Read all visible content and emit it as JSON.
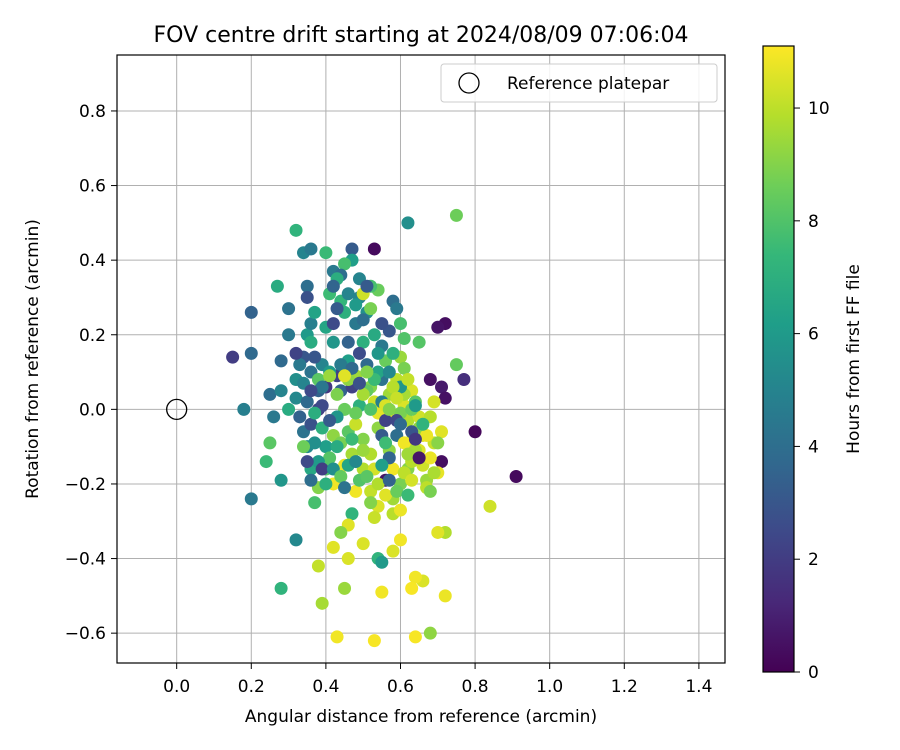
{
  "chart_data": {
    "type": "scatter",
    "title": "FOV centre drift starting at 2024/08/09 07:06:04",
    "xlabel": "Angular distance from reference (arcmin)",
    "ylabel": "Rotation from reference (arcmin)",
    "xlim": [
      -0.16,
      1.47
    ],
    "ylim": [
      -0.68,
      0.95
    ],
    "xticks": [
      0.0,
      0.2,
      0.4,
      0.6,
      0.8,
      1.0,
      1.2,
      1.4
    ],
    "xtick_labels": [
      "0.0",
      "0.2",
      "0.4",
      "0.6",
      "0.8",
      "1.0",
      "1.2",
      "1.4"
    ],
    "yticks": [
      -0.6,
      -0.4,
      -0.2,
      0.0,
      0.2,
      0.4,
      0.6,
      0.8
    ],
    "ytick_labels": [
      "−0.6",
      "−0.4",
      "−0.2",
      "0.0",
      "0.2",
      "0.4",
      "0.6",
      "0.8"
    ],
    "grid": true,
    "legend": {
      "position": "upper-right",
      "entries": [
        "Reference platepar"
      ]
    },
    "reference_point": {
      "x": 0.0,
      "y": 0.0,
      "label": "Reference platepar"
    },
    "colorbar": {
      "label": "Hours from first FF file",
      "range": [
        0,
        11.1
      ],
      "ticks": [
        0,
        2,
        4,
        6,
        8,
        10
      ],
      "tick_labels": [
        "0",
        "2",
        "4",
        "6",
        "8",
        "10"
      ],
      "colormap": "viridis",
      "colors": [
        "#440154",
        "#482878",
        "#3e4989",
        "#31688e",
        "#26828e",
        "#1f9e89",
        "#35b779",
        "#6ece58",
        "#b5de2b",
        "#fde725"
      ]
    },
    "points": [
      [
        0.53,
        0.43,
        0.3
      ],
      [
        0.62,
        0.5,
        5.5
      ],
      [
        0.75,
        0.52,
        8.6
      ],
      [
        0.91,
        -0.18,
        0.3
      ],
      [
        0.8,
        -0.06,
        0.2
      ],
      [
        0.72,
        0.23,
        0.4
      ],
      [
        0.7,
        0.22,
        0.6
      ],
      [
        0.68,
        0.08,
        0.5
      ],
      [
        0.71,
        0.06,
        0.8
      ],
      [
        0.72,
        0.03,
        0.5
      ],
      [
        0.77,
        0.08,
        1.5
      ],
      [
        0.71,
        -0.14,
        0.4
      ],
      [
        0.75,
        0.12,
        8.4
      ],
      [
        0.84,
        -0.26,
        10.3
      ],
      [
        0.72,
        -0.33,
        9.8
      ],
      [
        0.7,
        -0.33,
        10.6
      ],
      [
        0.72,
        -0.5,
        10.8
      ],
      [
        0.68,
        -0.6,
        9.2
      ],
      [
        0.66,
        -0.46,
        10.5
      ],
      [
        0.64,
        -0.45,
        10.9
      ],
      [
        0.64,
        -0.61,
        11.0
      ],
      [
        0.63,
        -0.48,
        11.0
      ],
      [
        0.55,
        -0.49,
        10.9
      ],
      [
        0.53,
        -0.62,
        11.0
      ],
      [
        0.43,
        -0.61,
        10.9
      ],
      [
        0.39,
        -0.52,
        9.6
      ],
      [
        0.38,
        -0.42,
        10.1
      ],
      [
        0.45,
        -0.48,
        9.4
      ],
      [
        0.42,
        -0.37,
        10.6
      ],
      [
        0.46,
        -0.4,
        10.5
      ],
      [
        0.5,
        -0.36,
        10.5
      ],
      [
        0.54,
        -0.4,
        7.2
      ],
      [
        0.55,
        -0.41,
        6.0
      ],
      [
        0.58,
        -0.38,
        10.5
      ],
      [
        0.6,
        -0.35,
        10.9
      ],
      [
        0.32,
        -0.35,
        5.2
      ],
      [
        0.28,
        -0.48,
        7.2
      ],
      [
        0.2,
        -0.24,
        4.5
      ],
      [
        0.18,
        0.0,
        4.8
      ],
      [
        0.15,
        0.14,
        2.0
      ],
      [
        0.2,
        0.15,
        3.8
      ],
      [
        0.2,
        0.26,
        3.5
      ],
      [
        0.25,
        0.04,
        4.0
      ],
      [
        0.24,
        -0.14,
        7.5
      ],
      [
        0.25,
        -0.09,
        8.2
      ],
      [
        0.26,
        -0.02,
        4.5
      ],
      [
        0.27,
        0.33,
        6.8
      ],
      [
        0.28,
        -0.19,
        5.8
      ],
      [
        0.3,
        0.27,
        4.2
      ],
      [
        0.32,
        0.48,
        7.2
      ],
      [
        0.34,
        0.42,
        5.0
      ],
      [
        0.36,
        0.43,
        4.5
      ],
      [
        0.35,
        0.33,
        4.0
      ],
      [
        0.35,
        0.3,
        2.8
      ],
      [
        0.4,
        0.42,
        7.5
      ],
      [
        0.47,
        0.43,
        3.2
      ],
      [
        0.47,
        0.4,
        6.2
      ],
      [
        0.45,
        0.39,
        7.8
      ],
      [
        0.42,
        0.37,
        4.5
      ],
      [
        0.41,
        0.31,
        7.6
      ],
      [
        0.3,
        0.2,
        4.5
      ],
      [
        0.28,
        0.13,
        3.8
      ],
      [
        0.28,
        0.05,
        5.0
      ],
      [
        0.3,
        0.0,
        6.8
      ],
      [
        0.32,
        0.08,
        5.5
      ],
      [
        0.34,
        0.14,
        3.0
      ],
      [
        0.35,
        0.2,
        6.0
      ],
      [
        0.36,
        0.1,
        4.2
      ],
      [
        0.38,
        0.05,
        3.5
      ],
      [
        0.39,
        0.12,
        5.0
      ],
      [
        0.4,
        0.22,
        6.5
      ],
      [
        0.42,
        0.18,
        5.8
      ],
      [
        0.43,
        0.09,
        2.2
      ],
      [
        0.44,
        0.05,
        3.5
      ],
      [
        0.45,
        0.0,
        8.5
      ],
      [
        0.46,
        0.13,
        6.2
      ],
      [
        0.48,
        0.23,
        4.5
      ],
      [
        0.49,
        0.3,
        5.0
      ],
      [
        0.5,
        0.18,
        7.0
      ],
      [
        0.51,
        0.12,
        3.8
      ],
      [
        0.52,
        0.06,
        9.0
      ],
      [
        0.53,
        0.02,
        10.3
      ],
      [
        0.54,
        -0.05,
        9.2
      ],
      [
        0.55,
        0.08,
        4.2
      ],
      [
        0.56,
        0.13,
        8.5
      ],
      [
        0.57,
        0.04,
        9.5
      ],
      [
        0.58,
        -0.02,
        10.8
      ],
      [
        0.59,
        0.08,
        10.0
      ],
      [
        0.6,
        0.14,
        9.4
      ],
      [
        0.61,
        0.01,
        10.5
      ],
      [
        0.62,
        -0.03,
        9.8
      ],
      [
        0.63,
        0.05,
        10.5
      ],
      [
        0.64,
        -0.06,
        10.9
      ],
      [
        0.65,
        -0.11,
        10.5
      ],
      [
        0.66,
        -0.15,
        10.3
      ],
      [
        0.67,
        -0.19,
        9.4
      ],
      [
        0.68,
        -0.13,
        10.8
      ],
      [
        0.69,
        -0.09,
        10.2
      ],
      [
        0.71,
        -0.06,
        10.6
      ],
      [
        0.7,
        -0.17,
        10.7
      ],
      [
        0.62,
        -0.16,
        9.0
      ],
      [
        0.6,
        -0.2,
        8.8
      ],
      [
        0.58,
        -0.24,
        9.5
      ],
      [
        0.56,
        -0.19,
        0.6
      ],
      [
        0.54,
        -0.26,
        10.5
      ],
      [
        0.52,
        -0.22,
        10.1
      ],
      [
        0.5,
        -0.16,
        9.8
      ],
      [
        0.48,
        -0.22,
        10.9
      ],
      [
        0.47,
        -0.28,
        7.2
      ],
      [
        0.46,
        -0.31,
        10.6
      ],
      [
        0.44,
        -0.33,
        9.0
      ],
      [
        0.42,
        -0.2,
        10.9
      ],
      [
        0.4,
        -0.16,
        8.0
      ],
      [
        0.38,
        -0.21,
        9.0
      ],
      [
        0.37,
        -0.25,
        7.8
      ],
      [
        0.36,
        -0.16,
        6.6
      ],
      [
        0.35,
        -0.1,
        5.2
      ],
      [
        0.34,
        -0.06,
        4.2
      ],
      [
        0.33,
        -0.02,
        3.5
      ],
      [
        0.32,
        0.03,
        5.2
      ],
      [
        0.36,
        -0.04,
        2.8
      ],
      [
        0.38,
        0.0,
        2.0
      ],
      [
        0.39,
        -0.05,
        7.0
      ],
      [
        0.4,
        -0.1,
        6.2
      ],
      [
        0.41,
        -0.13,
        8.1
      ],
      [
        0.42,
        -0.07,
        9.2
      ],
      [
        0.43,
        -0.02,
        5.8
      ],
      [
        0.44,
        -0.09,
        8.8
      ],
      [
        0.45,
        -0.15,
        10.8
      ],
      [
        0.46,
        -0.06,
        8.2
      ],
      [
        0.47,
        -0.12,
        9.6
      ],
      [
        0.48,
        -0.04,
        10.2
      ],
      [
        0.49,
        0.01,
        7.0
      ],
      [
        0.5,
        -0.08,
        9.0
      ],
      [
        0.51,
        0.05,
        8.4
      ],
      [
        0.52,
        -0.12,
        9.8
      ],
      [
        0.53,
        -0.16,
        10.4
      ],
      [
        0.54,
        -0.01,
        10.7
      ],
      [
        0.55,
        -0.07,
        3.2
      ],
      [
        0.56,
        -0.03,
        2.2
      ],
      [
        0.57,
        -0.11,
        9.2
      ],
      [
        0.58,
        -0.16,
        10.9
      ],
      [
        0.59,
        -0.07,
        4.0
      ],
      [
        0.6,
        -0.01,
        8.8
      ],
      [
        0.61,
        0.04,
        9.6
      ],
      [
        0.62,
        -0.09,
        10.0
      ],
      [
        0.63,
        -0.14,
        9.9
      ],
      [
        0.64,
        0.02,
        8.2
      ],
      [
        0.65,
        -0.02,
        10.3
      ],
      [
        0.66,
        -0.07,
        10.6
      ],
      [
        0.57,
        0.21,
        3.0
      ],
      [
        0.58,
        0.29,
        4.0
      ],
      [
        0.59,
        0.27,
        4.5
      ],
      [
        0.6,
        0.23,
        7.8
      ],
      [
        0.61,
        0.19,
        8.0
      ],
      [
        0.55,
        0.23,
        2.8
      ],
      [
        0.54,
        0.32,
        8.5
      ],
      [
        0.52,
        0.33,
        7.8
      ],
      [
        0.51,
        0.26,
        5.5
      ],
      [
        0.5,
        0.24,
        4.0
      ],
      [
        0.49,
        0.15,
        2.6
      ],
      [
        0.48,
        0.09,
        9.5
      ],
      [
        0.47,
        0.06,
        2.2
      ],
      [
        0.46,
        0.18,
        3.5
      ],
      [
        0.45,
        0.26,
        7.0
      ],
      [
        0.44,
        0.29,
        7.3
      ],
      [
        0.43,
        0.27,
        3.2
      ],
      [
        0.42,
        0.23,
        2.5
      ],
      [
        0.41,
        0.1,
        6.0
      ],
      [
        0.4,
        0.06,
        1.8
      ],
      [
        0.39,
        0.01,
        2.5
      ],
      [
        0.38,
        0.08,
        8.2
      ],
      [
        0.37,
        0.14,
        3.0
      ],
      [
        0.36,
        0.18,
        6.8
      ],
      [
        0.35,
        0.02,
        3.8
      ],
      [
        0.34,
        0.07,
        5.0
      ],
      [
        0.33,
        0.12,
        4.5
      ],
      [
        0.32,
        0.15,
        2.2
      ],
      [
        0.36,
        0.23,
        4.8
      ],
      [
        0.37,
        0.26,
        6.4
      ],
      [
        0.44,
        0.12,
        4.6
      ],
      [
        0.46,
        0.08,
        9.2
      ],
      [
        0.48,
        -0.01,
        8.5
      ],
      [
        0.5,
        0.04,
        9.6
      ],
      [
        0.52,
        0.0,
        8.0
      ],
      [
        0.54,
        0.1,
        6.5
      ],
      [
        0.56,
        -0.09,
        7.6
      ],
      [
        0.57,
        -0.13,
        3.6
      ],
      [
        0.59,
        -0.03,
        2.4
      ],
      [
        0.6,
        0.06,
        5.8
      ],
      [
        0.61,
        0.11,
        8.8
      ],
      [
        0.62,
        0.08,
        10.1
      ],
      [
        0.63,
        0.0,
        8.5
      ],
      [
        0.64,
        0.01,
        6.0
      ],
      [
        0.65,
        0.18,
        8.1
      ],
      [
        0.38,
        -0.14,
        6.0
      ],
      [
        0.37,
        -0.09,
        5.5
      ],
      [
        0.36,
        -0.19,
        4.0
      ],
      [
        0.35,
        -0.14,
        2.5
      ],
      [
        0.34,
        -0.1,
        8.6
      ],
      [
        0.39,
        -0.16,
        2.0
      ],
      [
        0.4,
        -0.2,
        7.0
      ],
      [
        0.41,
        -0.03,
        3.2
      ],
      [
        0.42,
        -0.16,
        5.5
      ],
      [
        0.43,
        -0.1,
        6.8
      ],
      [
        0.44,
        -0.18,
        8.4
      ],
      [
        0.45,
        -0.21,
        4.2
      ],
      [
        0.46,
        -0.15,
        6.5
      ],
      [
        0.47,
        -0.08,
        7.5
      ],
      [
        0.48,
        -0.14,
        5.2
      ],
      [
        0.49,
        -0.19,
        8.0
      ],
      [
        0.5,
        -0.11,
        9.4
      ],
      [
        0.51,
        -0.18,
        8.2
      ],
      [
        0.52,
        -0.25,
        9.0
      ],
      [
        0.53,
        -0.29,
        10.2
      ],
      [
        0.54,
        -0.2,
        9.8
      ],
      [
        0.55,
        -0.15,
        6.2
      ],
      [
        0.56,
        -0.23,
        10.6
      ],
      [
        0.57,
        -0.19,
        3.5
      ],
      [
        0.58,
        -0.28,
        9.9
      ],
      [
        0.59,
        -0.22,
        8.5
      ],
      [
        0.6,
        -0.27,
        10.8
      ],
      [
        0.61,
        -0.17,
        10.0
      ],
      [
        0.62,
        -0.23,
        7.5
      ],
      [
        0.63,
        -0.19,
        10.4
      ],
      [
        0.64,
        -0.11,
        9.6
      ],
      [
        0.65,
        -0.05,
        9.2
      ],
      [
        0.67,
        -0.07,
        10.8
      ],
      [
        0.68,
        -0.02,
        9.9
      ],
      [
        0.69,
        0.02,
        10.4
      ],
      [
        0.53,
        0.08,
        7.5
      ],
      [
        0.51,
        0.1,
        9.0
      ],
      [
        0.49,
        0.07,
        2.8
      ],
      [
        0.47,
        0.11,
        3.8
      ],
      [
        0.45,
        0.09,
        10.6
      ],
      [
        0.43,
        0.04,
        8.9
      ],
      [
        0.41,
        0.09,
        9.4
      ],
      [
        0.39,
        0.06,
        4.4
      ],
      [
        0.37,
        -0.01,
        6.9
      ],
      [
        0.36,
        0.05,
        2.5
      ],
      [
        0.55,
        0.17,
        4.5
      ],
      [
        0.57,
        0.1,
        5.2
      ],
      [
        0.58,
        0.06,
        9.9
      ],
      [
        0.59,
        0.03,
        10.2
      ],
      [
        0.6,
        -0.04,
        3.8
      ],
      [
        0.61,
        -0.09,
        10.9
      ],
      [
        0.62,
        -0.12,
        9.5
      ],
      [
        0.63,
        -0.06,
        3.0
      ],
      [
        0.64,
        -0.08,
        1.8
      ],
      [
        0.65,
        -0.13,
        0.7
      ],
      [
        0.66,
        -0.04,
        7.2
      ],
      [
        0.67,
        -0.21,
        10.0
      ],
      [
        0.68,
        -0.22,
        8.8
      ],
      [
        0.69,
        -0.17,
        9.7
      ],
      [
        0.7,
        -0.09,
        9.1
      ],
      [
        0.49,
        0.35,
        5.0
      ],
      [
        0.5,
        0.31,
        10.3
      ],
      [
        0.51,
        0.33,
        3.2
      ],
      [
        0.52,
        0.27,
        8.8
      ],
      [
        0.53,
        0.2,
        6.7
      ],
      [
        0.54,
        0.15,
        5.8
      ],
      [
        0.55,
        0.02,
        4.8
      ],
      [
        0.56,
        0.01,
        10.5
      ],
      [
        0.57,
        0.0,
        9.0
      ],
      [
        0.58,
        0.15,
        7.0
      ],
      [
        0.44,
        0.36,
        4.0
      ],
      [
        0.43,
        0.35,
        6.9
      ],
      [
        0.42,
        0.33,
        3.6
      ],
      [
        0.46,
        0.31,
        5.0
      ],
      [
        0.48,
        0.28,
        6.0
      ]
    ]
  }
}
